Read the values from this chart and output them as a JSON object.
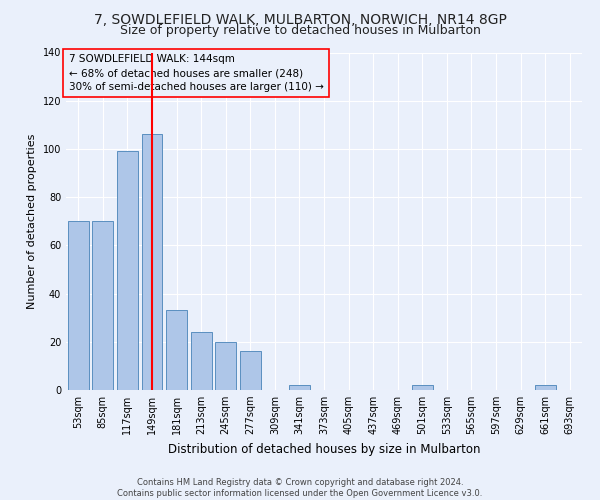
{
  "title1": "7, SOWDLEFIELD WALK, MULBARTON, NORWICH, NR14 8GP",
  "title2": "Size of property relative to detached houses in Mulbarton",
  "xlabel": "Distribution of detached houses by size in Mulbarton",
  "ylabel": "Number of detached properties",
  "categories": [
    "53sqm",
    "85sqm",
    "117sqm",
    "149sqm",
    "181sqm",
    "213sqm",
    "245sqm",
    "277sqm",
    "309sqm",
    "341sqm",
    "373sqm",
    "405sqm",
    "437sqm",
    "469sqm",
    "501sqm",
    "533sqm",
    "565sqm",
    "597sqm",
    "629sqm",
    "661sqm",
    "693sqm"
  ],
  "values": [
    70,
    70,
    99,
    106,
    33,
    24,
    20,
    16,
    0,
    2,
    0,
    0,
    0,
    0,
    2,
    0,
    0,
    0,
    0,
    2,
    0
  ],
  "bar_color": "#aec6e8",
  "bar_edge_color": "#5a8fc0",
  "vline_x_idx": 3,
  "vline_color": "red",
  "annotation_box_text": "7 SOWDLEFIELD WALK: 144sqm\n← 68% of detached houses are smaller (248)\n30% of semi-detached houses are larger (110) →",
  "box_edgecolor": "red",
  "ylim": [
    0,
    140
  ],
  "yticks": [
    0,
    20,
    40,
    60,
    80,
    100,
    120,
    140
  ],
  "footnote": "Contains HM Land Registry data © Crown copyright and database right 2024.\nContains public sector information licensed under the Open Government Licence v3.0.",
  "background_color": "#eaf0fb",
  "grid_color": "#ffffff",
  "title_fontsize": 10,
  "subtitle_fontsize": 9,
  "annotation_fontsize": 7.5,
  "ylabel_fontsize": 8,
  "xlabel_fontsize": 8.5,
  "tick_fontsize": 7,
  "footnote_fontsize": 6
}
